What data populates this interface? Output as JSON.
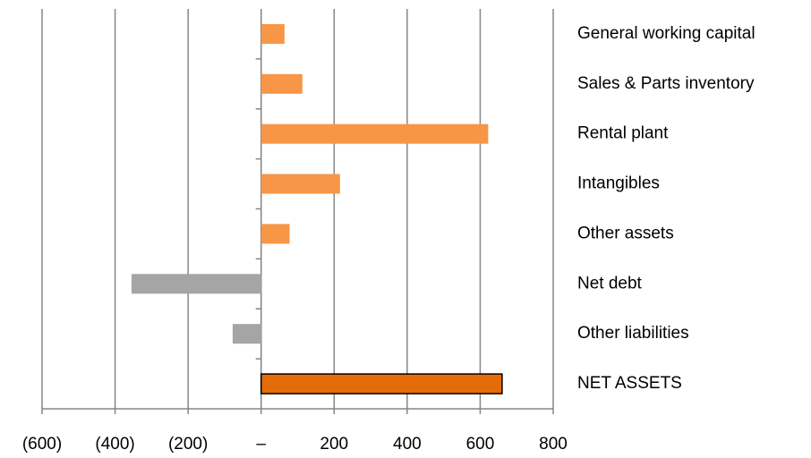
{
  "chart_data": {
    "type": "bar",
    "orientation": "horizontal",
    "categories": [
      "General working capital",
      "Sales &  Parts inventory",
      "Rental plant",
      "Intangibles",
      "Other assets",
      "Net debt",
      "Other liabilities",
      "NET ASSETS"
    ],
    "values": [
      64,
      113,
      622,
      216,
      78,
      -355,
      -78,
      660
    ],
    "colors": [
      "#f79646",
      "#f79646",
      "#f79646",
      "#f79646",
      "#f79646",
      "#a5a5a5",
      "#a5a5a5",
      "#e36c09"
    ],
    "xlim": [
      -600,
      800
    ],
    "xticks": [
      {
        "value": -600,
        "label": "(600)"
      },
      {
        "value": -400,
        "label": "(400)"
      },
      {
        "value": -200,
        "label": "(200)"
      },
      {
        "value": 0,
        "label": "–"
      },
      200,
      400,
      600,
      800
    ],
    "grid": true
  }
}
